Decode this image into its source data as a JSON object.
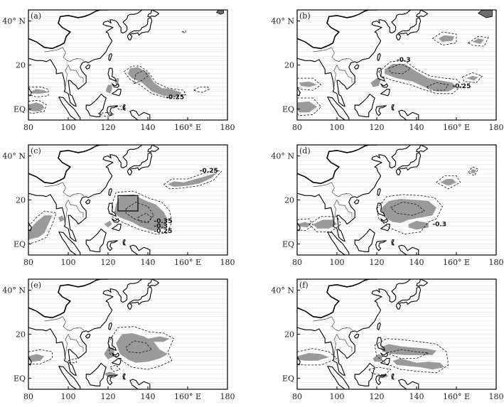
{
  "figure": {
    "axes": {
      "x_ticks": [
        "80",
        "100",
        "120",
        "140",
        "160° E",
        "180"
      ],
      "y_ticks": [
        "40° N",
        "20",
        "EQ"
      ]
    },
    "panels": [
      {
        "id": "a",
        "label": "(a)",
        "contour_labels": [
          "-0.25"
        ]
      },
      {
        "id": "b",
        "label": "(b)",
        "contour_labels": [
          "-0.3",
          "-0.25"
        ]
      },
      {
        "id": "c",
        "label": "(c)",
        "contour_labels": [
          "-0.25",
          "-0.35",
          "-0.3",
          "-0.25"
        ]
      },
      {
        "id": "d",
        "label": "(d)",
        "contour_labels": [
          "-0.3"
        ]
      },
      {
        "id": "e",
        "label": "(e)",
        "contour_labels": []
      },
      {
        "id": "f",
        "label": "(f)",
        "contour_labels": []
      }
    ],
    "colors": {
      "shading": "#9a9a9a",
      "dark_shading": "#6e6e6e",
      "coast": "#000000",
      "grid": "#d8d8d8"
    }
  }
}
